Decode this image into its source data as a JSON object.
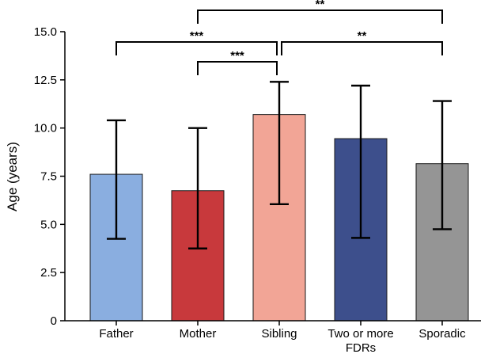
{
  "chart_data": {
    "type": "bar",
    "title": "",
    "xlabel": "",
    "ylabel": "Age (years)",
    "ylim": [
      0,
      15
    ],
    "yticks": [
      0,
      2.5,
      5.0,
      7.5,
      10.0,
      12.5,
      15.0
    ],
    "ytick_labels": [
      "0",
      "2.5",
      "5.0",
      "7.5",
      "10.0",
      "12.5",
      "15.0"
    ],
    "categories": [
      [
        "Father"
      ],
      [
        "Mother"
      ],
      [
        "Sibling"
      ],
      [
        "Two or more",
        "FDRs"
      ],
      [
        "Sporadic"
      ]
    ],
    "values": [
      7.6,
      6.75,
      10.7,
      9.45,
      8.15
    ],
    "error_low": [
      4.25,
      3.75,
      6.05,
      4.3,
      4.75
    ],
    "error_high": [
      10.4,
      10.0,
      12.4,
      12.2,
      11.4
    ],
    "colors": [
      "#8aaee0",
      "#c8393c",
      "#f2a596",
      "#3d4f8c",
      "#959595"
    ],
    "grid": false,
    "legend": "none",
    "significance": [
      {
        "from": 1,
        "to": 4,
        "label": "**"
      },
      {
        "from": 0,
        "to": 2,
        "label": "***"
      },
      {
        "from": 2,
        "to": 4,
        "label": "**"
      },
      {
        "from": 1,
        "to": 2,
        "label": "***"
      }
    ]
  }
}
